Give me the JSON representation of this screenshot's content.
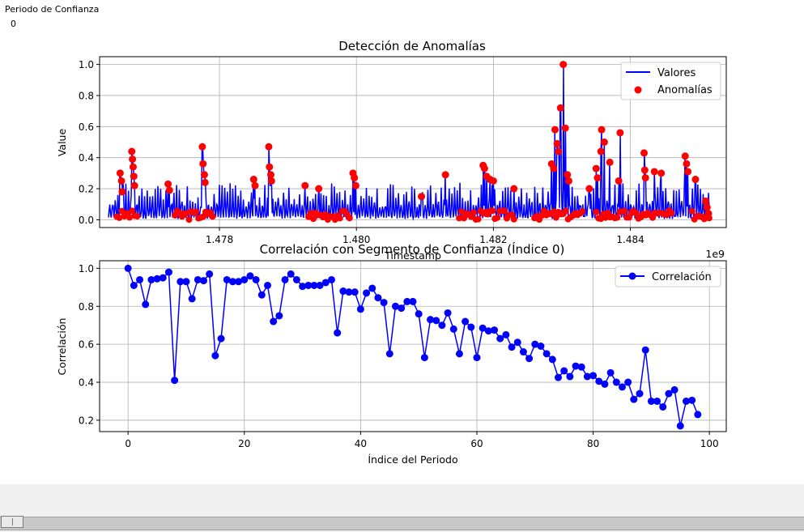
{
  "chart_data": [
    {
      "type": "line",
      "title": "Detección de Anomalías",
      "xlabel": "Timestamp",
      "ylabel": "Value",
      "x_offset_label": "1e9",
      "xlim": [
        1476.25,
        1485.4
      ],
      "ylim": [
        -0.05,
        1.05
      ],
      "xticks": [
        1478,
        1480,
        1482,
        1484
      ],
      "xtick_labels": [
        "1.478",
        "1.480",
        "1.482",
        "1.484"
      ],
      "yticks": [
        0.0,
        0.2,
        0.4,
        0.6,
        0.8,
        1.0
      ],
      "ytick_labels": [
        "0.0",
        "0.2",
        "0.4",
        "0.6",
        "0.8",
        "1.0"
      ],
      "grid": true,
      "legend_position": "upper-right",
      "series_line": {
        "name": "Valores",
        "color": "#0000ff"
      },
      "series_scatter": {
        "name": "Anomalías",
        "color": "#ff0000"
      },
      "line_x_range": [
        1476.38,
        1485.15
      ],
      "line_points": 900,
      "anomaly_points": [
        [
          1476.55,
          0.3
        ],
        [
          1476.57,
          0.25
        ],
        [
          1476.58,
          0.18
        ],
        [
          1476.72,
          0.44
        ],
        [
          1476.73,
          0.39
        ],
        [
          1476.74,
          0.34
        ],
        [
          1476.75,
          0.28
        ],
        [
          1476.76,
          0.22
        ],
        [
          1477.25,
          0.23
        ],
        [
          1477.27,
          0.19
        ],
        [
          1477.75,
          0.47
        ],
        [
          1477.76,
          0.36
        ],
        [
          1477.78,
          0.29
        ],
        [
          1477.79,
          0.24
        ],
        [
          1478.5,
          0.26
        ],
        [
          1478.52,
          0.22
        ],
        [
          1478.72,
          0.47
        ],
        [
          1478.73,
          0.34
        ],
        [
          1478.75,
          0.29
        ],
        [
          1478.76,
          0.25
        ],
        [
          1479.25,
          0.22
        ],
        [
          1479.45,
          0.2
        ],
        [
          1479.95,
          0.3
        ],
        [
          1479.97,
          0.27
        ],
        [
          1479.99,
          0.22
        ],
        [
          1480.95,
          0.15
        ],
        [
          1481.3,
          0.29
        ],
        [
          1481.85,
          0.35
        ],
        [
          1481.87,
          0.33
        ],
        [
          1481.9,
          0.28
        ],
        [
          1481.95,
          0.26
        ],
        [
          1482.0,
          0.25
        ],
        [
          1482.3,
          0.2
        ],
        [
          1482.85,
          0.36
        ],
        [
          1482.88,
          0.33
        ],
        [
          1482.9,
          0.58
        ],
        [
          1482.93,
          0.49
        ],
        [
          1482.95,
          0.44
        ],
        [
          1482.98,
          0.72
        ],
        [
          1483.02,
          1.0
        ],
        [
          1483.05,
          0.59
        ],
        [
          1483.08,
          0.29
        ],
        [
          1483.1,
          0.25
        ],
        [
          1483.4,
          0.2
        ],
        [
          1483.5,
          0.33
        ],
        [
          1483.52,
          0.27
        ],
        [
          1483.57,
          0.44
        ],
        [
          1483.58,
          0.58
        ],
        [
          1483.62,
          0.5
        ],
        [
          1483.7,
          0.37
        ],
        [
          1483.83,
          0.25
        ],
        [
          1483.85,
          0.56
        ],
        [
          1484.2,
          0.43
        ],
        [
          1484.21,
          0.32
        ],
        [
          1484.22,
          0.27
        ],
        [
          1484.35,
          0.31
        ],
        [
          1484.45,
          0.3
        ],
        [
          1484.8,
          0.41
        ],
        [
          1484.82,
          0.36
        ],
        [
          1484.84,
          0.31
        ],
        [
          1484.95,
          0.26
        ],
        [
          1485.1,
          0.12
        ],
        [
          1485.12,
          0.08
        ],
        [
          1485.14,
          0.04
        ]
      ],
      "low_anomaly_bands": [
        [
          1476.5,
          1476.8
        ],
        [
          1477.35,
          1477.9
        ],
        [
          1479.3,
          1479.9
        ],
        [
          1481.5,
          1482.3
        ],
        [
          1482.6,
          1483.3
        ],
        [
          1483.5,
          1484.6
        ],
        [
          1484.9,
          1485.15
        ]
      ]
    },
    {
      "type": "line",
      "title": "Correlación con Segmento de Confianza (Índice 0)",
      "xlabel": "Índice del Periodo",
      "ylabel": "Correlación",
      "xlim": [
        -4.9,
        102.9
      ],
      "ylim": [
        0.14,
        1.04
      ],
      "xticks": [
        0,
        20,
        40,
        60,
        80,
        100
      ],
      "xtick_labels": [
        "0",
        "20",
        "40",
        "60",
        "80",
        "100"
      ],
      "yticks": [
        0.2,
        0.4,
        0.6,
        0.8,
        1.0
      ],
      "ytick_labels": [
        "0.2",
        "0.4",
        "0.6",
        "0.8",
        "1.0"
      ],
      "grid": true,
      "legend_position": "upper-right",
      "series": [
        {
          "name": "Correlación",
          "color": "#0000ff",
          "x": [
            0,
            1,
            2,
            3,
            4,
            5,
            6,
            7,
            8,
            9,
            10,
            11,
            12,
            13,
            14,
            15,
            16,
            17,
            18,
            19,
            20,
            21,
            22,
            23,
            24,
            25,
            26,
            27,
            28,
            29,
            30,
            31,
            32,
            33,
            34,
            35,
            36,
            37,
            38,
            39,
            40,
            41,
            42,
            43,
            44,
            45,
            46,
            47,
            48,
            49,
            50,
            51,
            52,
            53,
            54,
            55,
            56,
            57,
            58,
            59,
            60,
            61,
            62,
            63,
            64,
            65,
            66,
            67,
            68,
            69,
            70,
            71,
            72,
            73,
            74,
            75,
            76,
            77,
            78,
            79,
            80,
            81,
            82,
            83,
            84,
            85,
            86,
            87,
            88,
            89,
            90,
            91,
            92,
            93,
            94,
            95,
            96,
            97,
            98
          ],
          "values": [
            1.0,
            0.91,
            0.94,
            0.81,
            0.94,
            0.945,
            0.95,
            0.98,
            0.41,
            0.93,
            0.93,
            0.84,
            0.94,
            0.935,
            0.97,
            0.54,
            0.63,
            0.94,
            0.93,
            0.93,
            0.94,
            0.96,
            0.94,
            0.86,
            0.91,
            0.72,
            0.75,
            0.94,
            0.97,
            0.94,
            0.905,
            0.91,
            0.91,
            0.91,
            0.925,
            0.94,
            0.66,
            0.88,
            0.875,
            0.875,
            0.785,
            0.87,
            0.895,
            0.845,
            0.82,
            0.55,
            0.8,
            0.79,
            0.825,
            0.825,
            0.76,
            0.53,
            0.73,
            0.725,
            0.7,
            0.765,
            0.68,
            0.55,
            0.72,
            0.69,
            0.53,
            0.685,
            0.67,
            0.675,
            0.63,
            0.65,
            0.585,
            0.61,
            0.56,
            0.525,
            0.6,
            0.59,
            0.55,
            0.52,
            0.425,
            0.46,
            0.43,
            0.485,
            0.48,
            0.43,
            0.435,
            0.405,
            0.39,
            0.45,
            0.4,
            0.375,
            0.4,
            0.31,
            0.34,
            0.57,
            0.3,
            0.3,
            0.27,
            0.34,
            0.36,
            0.17,
            0.3,
            0.305,
            0.23
          ]
        }
      ]
    }
  ],
  "slider": {
    "label": "Periodo de Confianza",
    "value": "0"
  }
}
